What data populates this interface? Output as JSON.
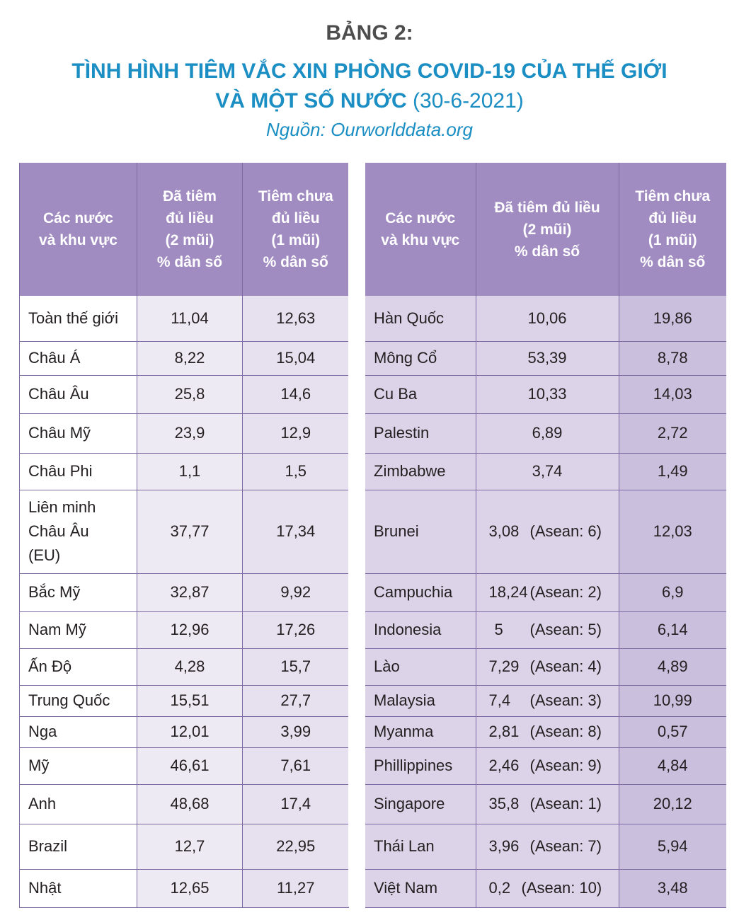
{
  "header": {
    "label": "BẢNG 2:",
    "title_line1": "TÌNH HÌNH TIÊM VẮC XIN PHÒNG COVID-19 CỦA THẾ GIỚI",
    "title_line2": "VÀ MỘT SỐ NƯỚC",
    "date": "(30-6-2021)",
    "source": "Nguồn: Ourworlddata.org"
  },
  "columns": {
    "region": [
      "Các nước",
      "và khu vực"
    ],
    "full_left": [
      "Đã tiêm",
      "đủ liều",
      "(2 mũi)",
      "% dân số"
    ],
    "partial": [
      "Tiêm chưa",
      "đủ liều",
      "(1 mũi)",
      "% dân số"
    ],
    "full_right": [
      "Đã tiêm đủ liều",
      "(2 mũi)",
      "% dân số"
    ]
  },
  "left_rows": [
    {
      "name": "Toàn thế giới",
      "full": "11,04",
      "partial": "12,63"
    },
    {
      "name": "Châu Á",
      "full": "8,22",
      "partial": "15,04"
    },
    {
      "name": "Châu Âu",
      "full": "25,8",
      "partial": "14,6"
    },
    {
      "name": "Châu Mỹ",
      "full": "23,9",
      "partial": "12,9"
    },
    {
      "name": "Châu Phi",
      "full": "1,1",
      "partial": "1,5"
    },
    {
      "name": [
        "Liên minh",
        "Châu Âu",
        "(EU)"
      ],
      "full": "37,77",
      "partial": "17,34"
    },
    {
      "name": "Bắc Mỹ",
      "full": "32,87",
      "partial": "9,92"
    },
    {
      "name": "Nam Mỹ",
      "full": "12,96",
      "partial": "17,26"
    },
    {
      "name": "Ấn Độ",
      "full": "4,28",
      "partial": "15,7"
    },
    {
      "name": "Trung Quốc",
      "full": "15,51",
      "partial": "27,7"
    },
    {
      "name": "Nga",
      "full": "12,01",
      "partial": "3,99"
    },
    {
      "name": "Mỹ",
      "full": "46,61",
      "partial": "7,61"
    },
    {
      "name": "Anh",
      "full": "48,68",
      "partial": "17,4"
    },
    {
      "name": "Brazil",
      "full": "12,7",
      "partial": "22,95"
    },
    {
      "name": "Nhật",
      "full": "12,65",
      "partial": "11,27"
    }
  ],
  "right_rows": [
    {
      "name": "Hàn Quốc",
      "full": "10,06",
      "partial": "19,86"
    },
    {
      "name": "Mông Cổ",
      "full": "53,39",
      "partial": "8,78"
    },
    {
      "name": "Cu Ba",
      "full": "10,33",
      "partial": "14,03"
    },
    {
      "name": "Palestin",
      "full": "6,89",
      "partial": "2,72"
    },
    {
      "name": "Zimbabwe",
      "full": "3,74",
      "partial": "1,49"
    },
    {
      "name": "Brunei",
      "full": "3,08",
      "asean": "(Asean: 6)",
      "partial": "12,03"
    },
    {
      "name": "Campuchia",
      "full": "18,24",
      "asean": "(Asean: 2)",
      "partial": "6,9"
    },
    {
      "name": "Indonesia",
      "full": "5",
      "asean": "(Asean: 5)",
      "partial": "6,14"
    },
    {
      "name": "Lào",
      "full": "7,29",
      "asean": "(Asean: 4)",
      "partial": "4,89"
    },
    {
      "name": "Malaysia",
      "full": "7,4",
      "asean": "(Asean: 3)",
      "partial": "10,99"
    },
    {
      "name": "Myanma",
      "full": "2,81",
      "asean": "(Asean: 8)",
      "partial": "0,57"
    },
    {
      "name": "Phillippines",
      "full": "2,46",
      "asean": "(Asean: 9)",
      "partial": "4,84"
    },
    {
      "name": "Singapore",
      "full": "35,8",
      "asean": "(Asean: 1)",
      "partial": "20,12"
    },
    {
      "name": "Thái Lan",
      "full": "3,96",
      "asean": "(Asean: 7)",
      "partial": "5,94"
    },
    {
      "name": "Việt Nam",
      "full": "0,2",
      "asean": "(Asean: 10)",
      "partial": "3,48"
    }
  ]
}
